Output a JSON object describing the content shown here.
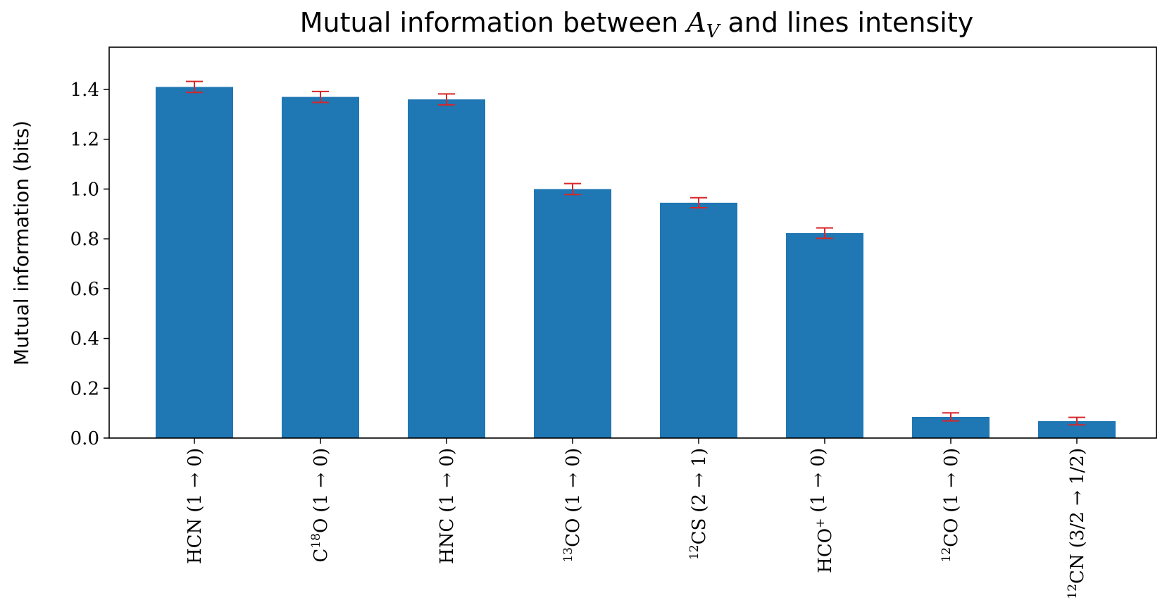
{
  "chart_data": {
    "type": "bar",
    "title_prefix": "Mutual information between",
    "title_symbol": "A",
    "title_symbol_sub": "V",
    "title_suffix": "and lines intensity",
    "ylabel": "Mutual information (bits)",
    "xlabel": "",
    "ylim": [
      0,
      1.56
    ],
    "yticks": [
      0.0,
      0.2,
      0.4,
      0.6,
      0.8,
      1.0,
      1.2,
      1.4
    ],
    "ytick_labels": [
      "0.0",
      "0.2",
      "0.4",
      "0.6",
      "0.8",
      "1.0",
      "1.2",
      "1.4"
    ],
    "grid": false,
    "bar_color": "#1f77b4",
    "error_color": "#d62728",
    "categories": [
      {
        "name": "HCN",
        "iso": "",
        "sup": "",
        "trans": "(1 → 0)"
      },
      {
        "name": "C",
        "iso": "",
        "sup": "18",
        "tail": "O",
        "trans": "(1 → 0)"
      },
      {
        "name": "HNC",
        "iso": "",
        "sup": "",
        "trans": "(1 → 0)"
      },
      {
        "name": "CO",
        "iso": "13",
        "sup": "",
        "trans": "(1 → 0)"
      },
      {
        "name": "CS",
        "iso": "12",
        "sup": "",
        "trans": "(2 → 1)"
      },
      {
        "name": "HCO",
        "iso": "",
        "sup": "+",
        "trans": "(1 → 0)"
      },
      {
        "name": "CO",
        "iso": "12",
        "sup": "",
        "trans": "(1 → 0)"
      },
      {
        "name": "CN",
        "iso": "12",
        "sup": "",
        "trans": "(3/2 → 1/2)"
      }
    ],
    "values": [
      1.41,
      1.37,
      1.36,
      1.0,
      0.945,
      0.823,
      0.085,
      0.068
    ],
    "errors": [
      0.022,
      0.022,
      0.022,
      0.022,
      0.02,
      0.021,
      0.016,
      0.015
    ]
  }
}
